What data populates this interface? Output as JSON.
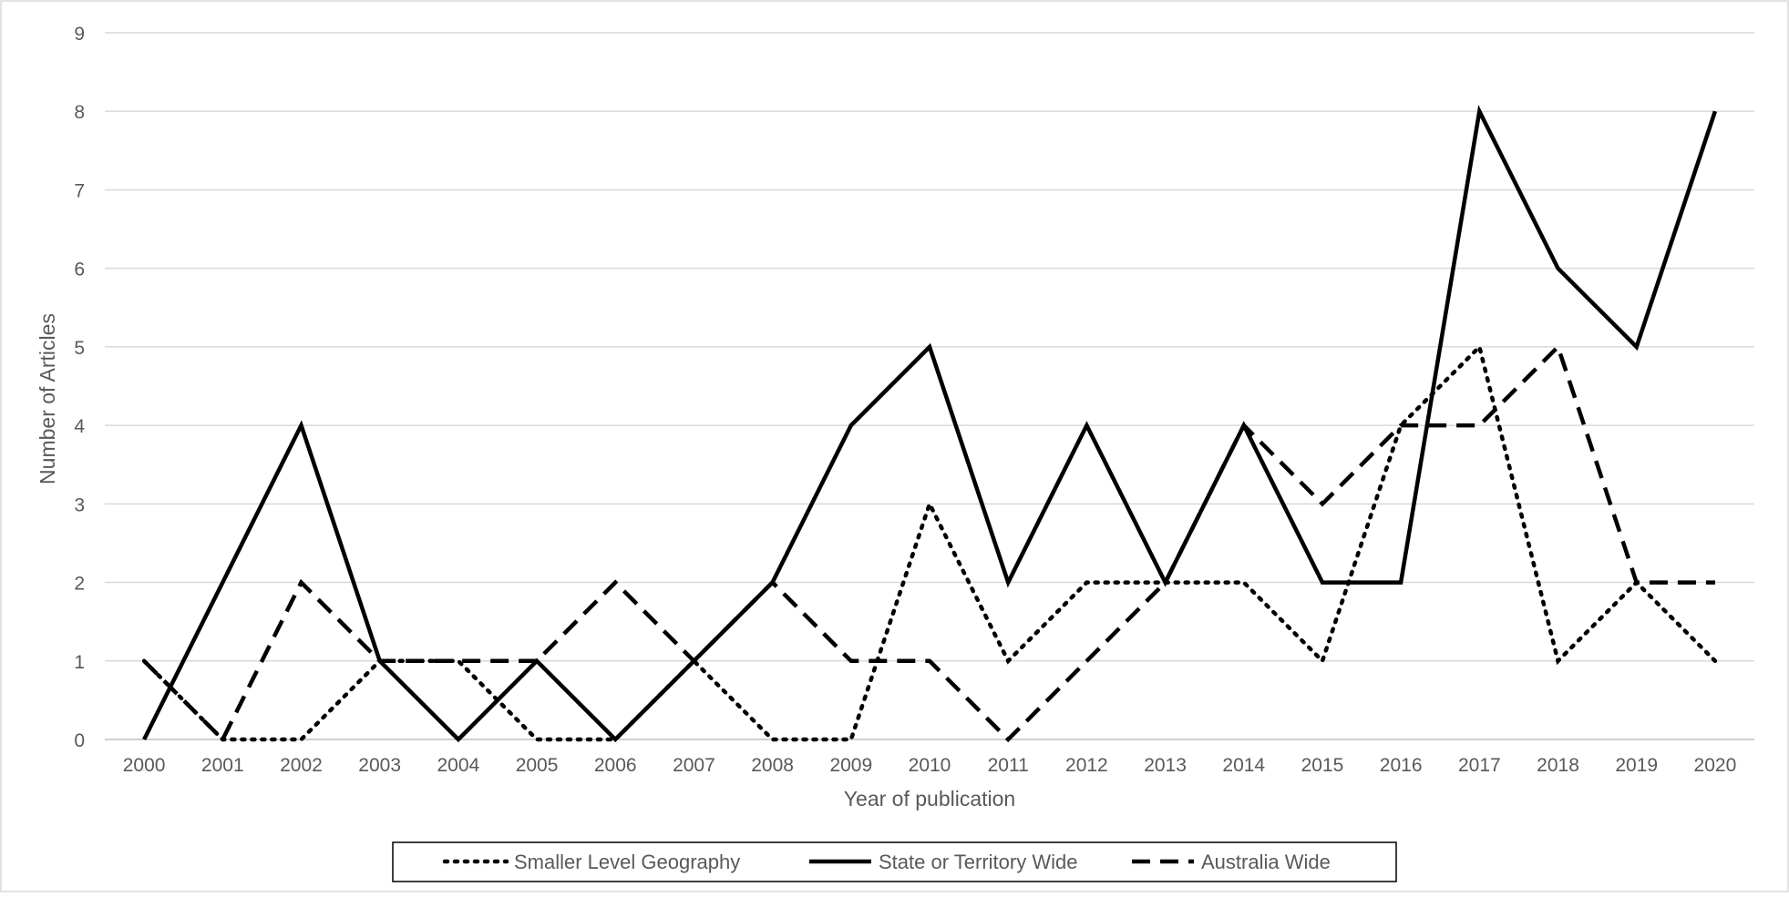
{
  "chart_data": {
    "type": "line",
    "title": "",
    "xlabel": "Year of publication",
    "ylabel": "Number of Articles",
    "ylim": [
      0,
      9
    ],
    "yticks": [
      "0",
      "1",
      "2",
      "3",
      "4",
      "5",
      "6",
      "7",
      "8",
      "9"
    ],
    "categories": [
      "2000",
      "2001",
      "2002",
      "2003",
      "2004",
      "2005",
      "2006",
      "2007",
      "2008",
      "2009",
      "2010",
      "2011",
      "2012",
      "2013",
      "2014",
      "2015",
      "2016",
      "2017",
      "2018",
      "2019",
      "2020"
    ],
    "grid": true,
    "legend_position": "bottom",
    "series": [
      {
        "name": "Smaller Level Geography",
        "line_style": "dotted",
        "color": "#000000",
        "values": [
          1,
          0,
          0,
          1,
          1,
          0,
          0,
          1,
          0,
          0,
          3,
          1,
          2,
          2,
          2,
          1,
          4,
          5,
          1,
          2,
          1
        ]
      },
      {
        "name": "State or Territory Wide",
        "line_style": "solid",
        "color": "#000000",
        "values": [
          0,
          2,
          4,
          1,
          0,
          1,
          0,
          1,
          2,
          4,
          5,
          2,
          4,
          2,
          4,
          2,
          2,
          8,
          6,
          5,
          8
        ]
      },
      {
        "name": "Australia Wide",
        "line_style": "dashed",
        "color": "#000000",
        "values": [
          1,
          0,
          2,
          1,
          1,
          1,
          2,
          1,
          2,
          1,
          1,
          0,
          1,
          2,
          4,
          3,
          4,
          4,
          5,
          2,
          2
        ]
      }
    ]
  }
}
